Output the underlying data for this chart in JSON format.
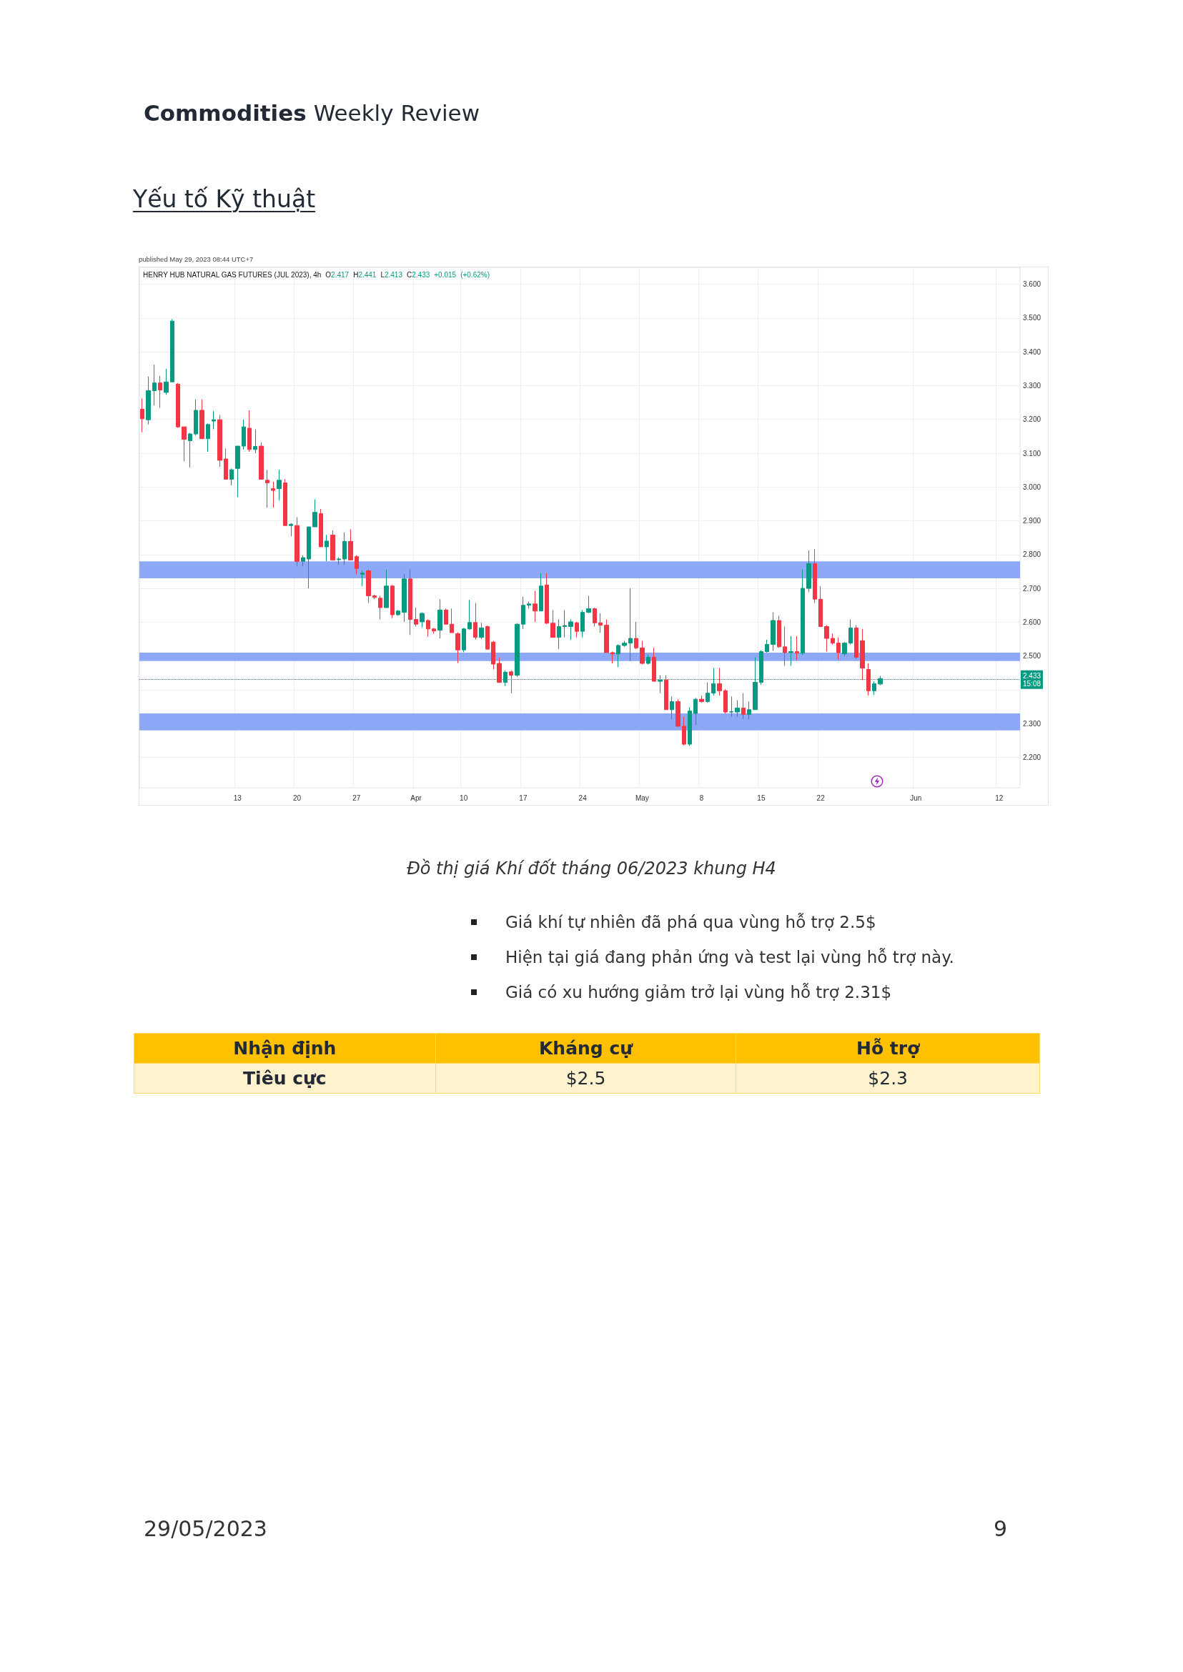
{
  "chart_data": {
    "type": "candlestick",
    "title": "HENRY HUB NATURAL GAS FUTURES (JUL 2023), 4h",
    "annotations": [
      "Commodities",
      "Weekly Review",
      "Yếu tố Kỹ thuật",
      "published May 29, 2023 08:44 UTC+7",
      "O2.417 H2.441 L2.413 C2.433 +0.015 (+0.62%)",
      "Đồ thị giá Khí đốt tháng 06/2023 khung H4",
      "Giá khí tự nhiên đã phá qua vùng hỗ trợ 2.5$",
      "Hiện tại giá đang phản ứng và test lại vùng hỗ trợ này.",
      "Giá có xu hướng giảm trở lại vùng hỗ trợ 2.31$",
      "Nhận định",
      "Kháng cự",
      "Hỗ trợ",
      "Tiêu cực",
      "$2.5",
      "$2.3",
      "29/05/2023",
      "9"
    ],
    "categories": [
      null,
      null,
      null,
      null,
      null,
      null,
      null,
      null,
      null,
      null,
      null,
      null,
      null,
      null,
      null,
      null,
      "13",
      null,
      null,
      null,
      null,
      null,
      null,
      null,
      null,
      null,
      "20",
      null,
      null,
      null,
      null,
      null,
      null,
      null,
      null,
      null,
      "27",
      null,
      null,
      null,
      null,
      null,
      null,
      null,
      null,
      null,
      "Apr",
      null,
      null,
      null,
      null,
      null,
      null,
      null,
      "10",
      null,
      null,
      null,
      null,
      null,
      null,
      null,
      null,
      null,
      "17",
      null,
      null,
      null,
      null,
      null,
      null,
      null,
      null,
      null,
      "24",
      null,
      null,
      null,
      null,
      null,
      null,
      null,
      null,
      null,
      "May",
      null,
      null,
      null,
      null,
      null,
      null,
      null,
      null,
      null,
      "8",
      null,
      null,
      null,
      null,
      null,
      null,
      null,
      null,
      null,
      "15",
      null,
      null,
      null,
      null,
      null,
      null,
      null,
      null,
      null,
      "22",
      null,
      null,
      null,
      null,
      null,
      null,
      null,
      null,
      null,
      null,
      null,
      null,
      null,
      null,
      null,
      "Jun",
      null,
      null,
      null,
      null,
      null,
      null,
      null,
      null,
      null,
      null,
      null,
      null,
      null,
      "12",
      null,
      null,
      null
    ],
    "ohlc": [
      [
        3.23,
        3.262,
        3.162,
        3.202
      ],
      [
        3.199,
        3.327,
        3.185,
        3.285
      ],
      [
        3.285,
        3.362,
        3.241,
        3.308
      ],
      [
        3.308,
        3.329,
        3.234,
        3.287
      ],
      [
        3.28,
        3.35,
        3.273,
        3.311
      ],
      [
        3.311,
        3.497,
        3.311,
        3.491
      ],
      [
        3.304,
        3.308,
        3.175,
        3.178
      ],
      [
        3.178,
        3.178,
        3.076,
        3.141
      ],
      [
        3.137,
        3.16,
        3.058,
        3.157
      ],
      [
        3.157,
        3.259,
        3.153,
        3.227
      ],
      [
        3.227,
        3.259,
        3.143,
        3.143
      ],
      [
        3.143,
        3.188,
        3.104,
        3.185
      ],
      [
        3.195,
        3.225,
        3.171,
        3.199
      ],
      [
        3.199,
        3.213,
        3.06,
        3.079
      ],
      [
        3.083,
        3.114,
        3.023,
        3.023
      ],
      [
        3.023,
        3.055,
        3.005,
        3.051
      ],
      [
        3.055,
        3.121,
        2.97,
        3.121
      ],
      [
        3.121,
        3.199,
        3.111,
        3.178
      ],
      [
        3.174,
        3.227,
        3.104,
        3.111
      ],
      [
        3.111,
        3.171,
        3.1,
        3.12
      ],
      [
        3.121,
        3.132,
        3.022,
        3.023
      ],
      [
        3.02,
        3.051,
        2.939,
        3.012
      ],
      [
        2.995,
        3.016,
        2.939,
        2.99
      ],
      [
        2.995,
        3.051,
        2.96,
        3.02
      ],
      [
        3.012,
        3.023,
        2.886,
        2.886
      ],
      [
        2.886,
        2.893,
        2.854,
        2.89
      ],
      [
        2.886,
        2.911,
        2.766,
        2.78
      ],
      [
        2.78,
        2.798,
        2.766,
        2.791
      ],
      [
        2.787,
        2.882,
        2.7,
        2.882
      ],
      [
        2.882,
        2.963,
        2.882,
        2.925
      ],
      [
        2.921,
        2.935,
        2.823,
        2.823
      ],
      [
        2.823,
        2.858,
        2.78,
        2.84
      ],
      [
        2.858,
        2.872,
        2.782,
        2.784
      ],
      [
        2.785,
        2.792,
        2.77,
        2.787
      ],
      [
        2.787,
        2.865,
        2.77,
        2.839
      ],
      [
        2.839,
        2.875,
        2.784,
        2.784
      ],
      [
        2.794,
        2.798,
        2.742,
        2.759
      ],
      [
        2.742,
        2.752,
        2.707,
        2.745
      ],
      [
        2.752,
        2.756,
        2.657,
        2.678
      ],
      [
        2.678,
        2.682,
        2.668,
        2.673
      ],
      [
        2.671,
        2.678,
        2.608,
        2.643
      ],
      [
        2.643,
        2.756,
        2.643,
        2.707
      ],
      [
        2.707,
        2.71,
        2.612,
        2.622
      ],
      [
        2.622,
        2.636,
        2.619,
        2.633
      ],
      [
        2.629,
        2.742,
        2.601,
        2.728
      ],
      [
        2.728,
        2.756,
        2.562,
        2.608
      ],
      [
        2.608,
        2.643,
        2.587,
        2.594
      ],
      [
        2.601,
        2.629,
        2.584,
        2.626
      ],
      [
        2.605,
        2.608,
        2.557,
        2.58
      ],
      [
        2.58,
        2.583,
        2.566,
        2.574
      ],
      [
        2.576,
        2.668,
        2.552,
        2.636
      ],
      [
        2.636,
        2.64,
        2.593,
        2.594
      ],
      [
        2.594,
        2.64,
        2.569,
        2.569
      ],
      [
        2.566,
        2.57,
        2.479,
        2.518
      ],
      [
        2.518,
        2.583,
        2.511,
        2.58
      ],
      [
        2.58,
        2.666,
        2.578,
        2.599
      ],
      [
        2.599,
        2.657,
        2.548,
        2.555
      ],
      [
        2.555,
        2.598,
        2.55,
        2.583
      ],
      [
        2.587,
        2.59,
        2.52,
        2.52
      ],
      [
        2.541,
        2.545,
        2.46,
        2.476
      ],
      [
        2.478,
        2.496,
        2.42,
        2.422
      ],
      [
        2.422,
        2.457,
        2.411,
        2.452
      ],
      [
        2.453,
        2.457,
        2.39,
        2.443
      ],
      [
        2.443,
        2.597,
        2.438,
        2.594
      ],
      [
        2.594,
        2.675,
        2.58,
        2.65
      ],
      [
        2.65,
        2.661,
        2.64,
        2.654
      ],
      [
        2.654,
        2.692,
        2.601,
        2.633
      ],
      [
        2.633,
        2.745,
        2.633,
        2.707
      ],
      [
        2.71,
        2.745,
        2.594,
        2.597
      ],
      [
        2.597,
        2.636,
        2.555,
        2.555
      ],
      [
        2.555,
        2.608,
        2.52,
        2.587
      ],
      [
        2.587,
        2.636,
        2.555,
        2.59
      ],
      [
        2.587,
        2.608,
        2.548,
        2.601
      ],
      [
        2.598,
        2.601,
        2.555,
        2.573
      ],
      [
        2.573,
        2.636,
        2.555,
        2.629
      ],
      [
        2.629,
        2.678,
        2.627,
        2.64
      ],
      [
        2.64,
        2.643,
        2.587,
        2.598
      ],
      [
        2.598,
        2.626,
        2.569,
        2.591
      ],
      [
        2.591,
        2.608,
        2.51,
        2.51
      ],
      [
        2.51,
        2.513,
        2.478,
        2.506
      ],
      [
        2.506,
        2.534,
        2.467,
        2.531
      ],
      [
        2.531,
        2.545,
        2.527,
        2.538
      ],
      [
        2.538,
        2.7,
        2.485,
        2.552
      ],
      [
        2.552,
        2.601,
        2.52,
        2.524
      ],
      [
        2.524,
        2.545,
        2.475,
        2.478
      ],
      [
        2.478,
        2.503,
        2.475,
        2.496
      ],
      [
        2.496,
        2.524,
        2.425,
        2.425
      ],
      [
        2.425,
        2.443,
        2.39,
        2.429
      ],
      [
        2.429,
        2.443,
        2.341,
        2.341
      ],
      [
        2.341,
        2.38,
        2.313,
        2.365
      ],
      [
        2.365,
        2.372,
        2.292,
        2.292
      ],
      [
        2.292,
        2.32,
        2.235,
        2.239
      ],
      [
        2.239,
        2.348,
        2.234,
        2.337
      ],
      [
        2.33,
        2.376,
        2.295,
        2.372
      ],
      [
        2.372,
        2.383,
        2.362,
        2.365
      ],
      [
        2.365,
        2.422,
        2.362,
        2.39
      ],
      [
        2.39,
        2.464,
        2.383,
        2.418
      ],
      [
        2.418,
        2.464,
        2.383,
        2.397
      ],
      [
        2.397,
        2.401,
        2.33,
        2.334
      ],
      [
        2.334,
        2.38,
        2.32,
        2.335
      ],
      [
        2.334,
        2.369,
        2.32,
        2.346
      ],
      [
        2.346,
        2.39,
        2.313,
        2.327
      ],
      [
        2.327,
        2.365,
        2.313,
        2.341
      ],
      [
        2.341,
        2.496,
        2.341,
        2.422
      ],
      [
        2.422,
        2.517,
        2.415,
        2.513
      ],
      [
        2.513,
        2.548,
        2.51,
        2.534
      ],
      [
        2.534,
        2.629,
        2.515,
        2.605
      ],
      [
        2.605,
        2.619,
        2.524,
        2.527
      ],
      [
        2.527,
        2.587,
        2.471,
        2.51
      ],
      [
        2.51,
        2.559,
        2.471,
        2.513
      ],
      [
        2.513,
        2.559,
        2.488,
        2.508
      ],
      [
        2.508,
        2.756,
        2.503,
        2.7
      ],
      [
        2.7,
        2.812,
        2.689,
        2.773
      ],
      [
        2.773,
        2.816,
        2.657,
        2.668
      ],
      [
        2.668,
        2.707,
        2.587,
        2.587
      ],
      [
        2.587,
        2.591,
        2.513,
        2.552
      ],
      [
        2.552,
        2.566,
        2.534,
        2.538
      ],
      [
        2.538,
        2.555,
        2.489,
        2.51
      ],
      [
        2.506,
        2.541,
        2.499,
        2.538
      ],
      [
        2.538,
        2.608,
        2.534,
        2.583
      ],
      [
        2.583,
        2.591,
        2.492,
        2.496
      ],
      [
        2.545,
        2.58,
        2.429,
        2.464
      ],
      [
        2.46,
        2.478,
        2.383,
        2.397
      ],
      [
        2.397,
        2.425,
        2.385,
        2.418
      ],
      [
        2.417,
        2.441,
        2.413,
        2.433
      ],
      null,
      null,
      null,
      null,
      null,
      null,
      null,
      null,
      null,
      null,
      null,
      null,
      null,
      null,
      null,
      null,
      null,
      null,
      null,
      null,
      null,
      null,
      null
    ],
    "colors": [
      "#f23645",
      "#089981",
      "#089981",
      "#f23645",
      "#089981",
      "#089981",
      "#f23645",
      "#f23645",
      "#089981",
      "#089981",
      "#f23645",
      "#089981",
      "#089981",
      "#f23645",
      "#f23645",
      "#089981",
      "#089981",
      "#089981",
      "#f23645",
      "#089981",
      "#f23645",
      "#f23645",
      "#f23645",
      "#089981",
      "#f23645",
      "#089981",
      "#f23645",
      "#089981",
      "#089981",
      "#089981",
      "#f23645",
      "#089981",
      "#f23645",
      "#089981",
      "#089981",
      "#f23645",
      "#f23645",
      "#089981",
      "#f23645",
      "#f23645",
      "#f23645",
      "#089981",
      "#f23645",
      "#089981",
      "#089981",
      "#f23645",
      "#f23645",
      "#089981",
      "#f23645",
      "#f23645",
      "#089981",
      "#f23645",
      "#f23645",
      "#f23645",
      "#089981",
      "#089981",
      "#f23645",
      "#089981",
      "#f23645",
      "#f23645",
      "#f23645",
      "#089981",
      "#f23645",
      "#089981",
      "#089981",
      "#089981",
      "#f23645",
      "#089981",
      "#f23645",
      "#f23645",
      "#089981",
      "#089981",
      "#089981",
      "#f23645",
      "#089981",
      "#089981",
      "#f23645",
      "#f23645",
      "#f23645",
      "#f23645",
      "#089981",
      "#089981",
      "#089981",
      "#f23645",
      "#f23645",
      "#089981",
      "#f23645",
      "#089981",
      "#f23645",
      "#089981",
      "#f23645",
      "#f23645",
      "#089981",
      "#089981",
      "#f23645",
      "#089981",
      "#089981",
      "#f23645",
      "#f23645",
      "#089981",
      "#089981",
      "#f23645",
      "#089981",
      "#089981",
      "#089981",
      "#089981",
      "#089981",
      "#f23645",
      "#f23645",
      "#089981",
      "#f23645",
      "#089981",
      "#089981",
      "#f23645",
      "#f23645",
      "#f23645",
      "#f23645",
      "#f23645",
      "#089981",
      "#089981",
      "#f23645",
      "#f23645",
      "#f23645",
      "#089981",
      "#089981",
      null,
      null,
      null,
      null,
      null,
      null,
      null,
      null,
      null,
      null,
      null,
      null,
      null,
      null,
      null,
      null,
      null,
      null,
      null,
      null,
      null,
      null,
      null
    ],
    "ylim": [
      2.11,
      3.65
    ],
    "yticks": [
      {
        "value": 2.2,
        "label": "2.200"
      },
      {
        "value": 2.3,
        "label": "2.300"
      },
      {
        "value": 2.4,
        "label": null
      },
      {
        "value": 2.5,
        "label": "2.500"
      },
      {
        "value": 2.6,
        "label": "2.600"
      },
      {
        "value": 2.7,
        "label": "2.700"
      },
      {
        "value": 2.8,
        "label": "2.800"
      },
      {
        "value": 2.9,
        "label": "2.900"
      },
      {
        "value": 3.0,
        "label": "3.000"
      },
      {
        "value": 3.1,
        "label": "3.100"
      },
      {
        "value": 3.2,
        "label": "3.200"
      },
      {
        "value": 3.3,
        "label": "3.300"
      },
      {
        "value": 3.4,
        "label": "3.400"
      },
      {
        "value": 3.5,
        "label": "3.500"
      },
      {
        "value": 3.6,
        "label": "3.600"
      }
    ],
    "grid": true,
    "ref_lines": [
      {
        "axis": "y",
        "value": 2.433,
        "label": "2.433\n15:08",
        "color": "#089981",
        "line_style": "dotted"
      }
    ],
    "bands": [
      {
        "axis": "y",
        "from": 2.73,
        "to": 2.78,
        "color": "#8ea8f8"
      },
      {
        "axis": "y",
        "from": 2.485,
        "to": 2.51,
        "color": "#8ea8f8"
      },
      {
        "axis": "y",
        "from": 2.28,
        "to": 2.33,
        "color": "#8ea8f8"
      }
    ]
  }
}
